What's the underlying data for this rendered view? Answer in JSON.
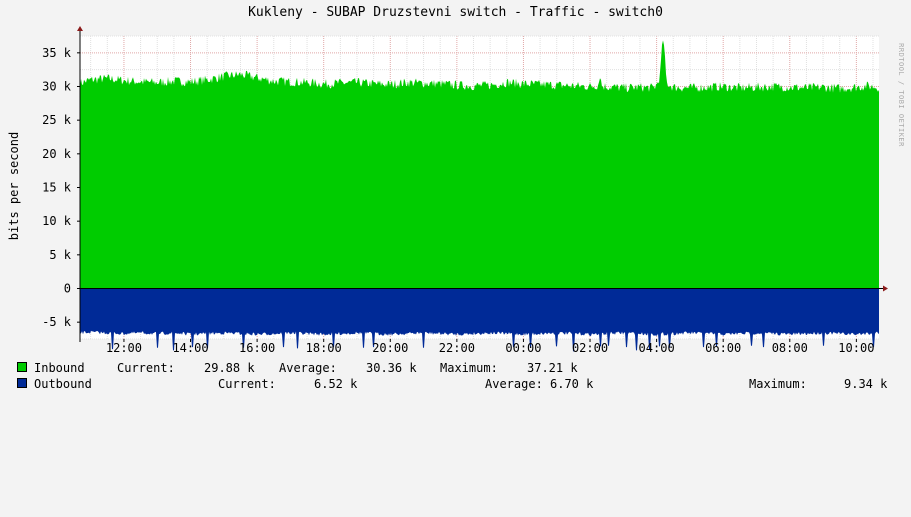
{
  "title": "Kukleny - SUBAP Druzstevni switch - Traffic - switch0",
  "watermark": "RRDTOOL / TOBI OETIKER",
  "colors": {
    "inbound": "#00cc00",
    "outbound": "#002a97",
    "plot_bg": "#ffffff",
    "grid_minor": "#e0e0e0",
    "grid_major": "#e0a8a8",
    "axis": "#000000"
  },
  "chart_data": {
    "type": "area",
    "ylabel": "bits per second",
    "ylim": [
      -7500,
      37500
    ],
    "y_ticks": [
      {
        "value": 35000,
        "label": "35 k"
      },
      {
        "value": 30000,
        "label": "30 k"
      },
      {
        "value": 25000,
        "label": "25 k"
      },
      {
        "value": 20000,
        "label": "20 k"
      },
      {
        "value": 15000,
        "label": "15 k"
      },
      {
        "value": 10000,
        "label": "10 k"
      },
      {
        "value": 5000,
        "label": "5 k"
      },
      {
        "value": 0,
        "label": "0"
      },
      {
        "value": -5000,
        "label": "-5 k"
      }
    ],
    "x_hours_range": [
      10.68,
      34.68
    ],
    "x_ticks": [
      {
        "value": 12,
        "label": "12:00"
      },
      {
        "value": 14,
        "label": "14:00"
      },
      {
        "value": 16,
        "label": "16:00"
      },
      {
        "value": 18,
        "label": "18:00"
      },
      {
        "value": 20,
        "label": "20:00"
      },
      {
        "value": 22,
        "label": "22:00"
      },
      {
        "value": 24,
        "label": "00:00"
      },
      {
        "value": 26,
        "label": "02:00"
      },
      {
        "value": 28,
        "label": "04:00"
      },
      {
        "value": 30,
        "label": "06:00"
      },
      {
        "value": 32,
        "label": "08:00"
      },
      {
        "value": 34,
        "label": "10:00"
      }
    ],
    "series": [
      {
        "name": "Inbound",
        "sign": 1,
        "points": [
          [
            10.68,
            30500
          ],
          [
            11.0,
            31000
          ],
          [
            11.5,
            31200
          ],
          [
            12.0,
            30900
          ],
          [
            12.5,
            30700
          ],
          [
            13.0,
            30600
          ],
          [
            13.5,
            30800
          ],
          [
            14.0,
            30700
          ],
          [
            14.5,
            31000
          ],
          [
            15.0,
            31500
          ],
          [
            15.5,
            31800
          ],
          [
            16.0,
            31300
          ],
          [
            16.5,
            30800
          ],
          [
            17.0,
            30700
          ],
          [
            17.5,
            30600
          ],
          [
            18.0,
            30400
          ],
          [
            18.5,
            30500
          ],
          [
            19.0,
            30600
          ],
          [
            19.5,
            30400
          ],
          [
            20.0,
            30300
          ],
          [
            20.5,
            30600
          ],
          [
            21.0,
            30500
          ],
          [
            21.5,
            30400
          ],
          [
            22.0,
            30200
          ],
          [
            22.5,
            30100
          ],
          [
            23.0,
            30200
          ],
          [
            23.5,
            30600
          ],
          [
            24.0,
            30400
          ],
          [
            24.5,
            30300
          ],
          [
            25.0,
            30200
          ],
          [
            25.5,
            30100
          ],
          [
            26.0,
            30000
          ],
          [
            26.25,
            30200
          ],
          [
            26.3,
            31800
          ],
          [
            26.35,
            30100
          ],
          [
            26.5,
            30000
          ],
          [
            27.0,
            29800
          ],
          [
            27.5,
            29900
          ],
          [
            27.9,
            29800
          ],
          [
            28.0,
            30200
          ],
          [
            28.1,
            31500
          ],
          [
            28.15,
            35000
          ],
          [
            28.2,
            37210
          ],
          [
            28.25,
            34000
          ],
          [
            28.3,
            30500
          ],
          [
            28.5,
            29900
          ],
          [
            29.0,
            29800
          ],
          [
            29.5,
            29900
          ],
          [
            30.0,
            30000
          ],
          [
            30.5,
            29800
          ],
          [
            31.0,
            29900
          ],
          [
            31.5,
            30000
          ],
          [
            32.0,
            29900
          ],
          [
            32.5,
            29800
          ],
          [
            33.0,
            29900
          ],
          [
            33.5,
            29700
          ],
          [
            34.0,
            29900
          ],
          [
            34.3,
            30100
          ],
          [
            34.68,
            29880
          ]
        ]
      },
      {
        "name": "Outbound",
        "sign": -1,
        "points": [
          [
            10.68,
            6600
          ],
          [
            11.0,
            6500
          ],
          [
            11.5,
            6600
          ],
          [
            12.0,
            6700
          ],
          [
            12.5,
            6600
          ],
          [
            13.0,
            6700
          ],
          [
            13.5,
            6600
          ],
          [
            14.0,
            6800
          ],
          [
            14.5,
            6700
          ],
          [
            15.0,
            6600
          ],
          [
            15.5,
            6700
          ],
          [
            16.0,
            6800
          ],
          [
            16.5,
            6700
          ],
          [
            17.0,
            6600
          ],
          [
            17.5,
            6700
          ],
          [
            18.0,
            6800
          ],
          [
            18.5,
            6700
          ],
          [
            19.0,
            6600
          ],
          [
            19.5,
            6700
          ],
          [
            20.0,
            6800
          ],
          [
            20.5,
            6700
          ],
          [
            21.0,
            6600
          ],
          [
            21.5,
            6700
          ],
          [
            22.0,
            6800
          ],
          [
            22.5,
            6700
          ],
          [
            23.0,
            6600
          ],
          [
            23.5,
            6700
          ],
          [
            24.0,
            6800
          ],
          [
            24.5,
            6700
          ],
          [
            25.0,
            6600
          ],
          [
            25.5,
            6700
          ],
          [
            26.0,
            6800
          ],
          [
            26.5,
            6700
          ],
          [
            27.0,
            6600
          ],
          [
            27.5,
            6700
          ],
          [
            28.0,
            6800
          ],
          [
            28.5,
            6700
          ],
          [
            29.0,
            6600
          ],
          [
            29.5,
            6700
          ],
          [
            30.0,
            6800
          ],
          [
            30.5,
            6700
          ],
          [
            31.0,
            6600
          ],
          [
            31.5,
            6700
          ],
          [
            32.0,
            6800
          ],
          [
            32.5,
            6700
          ],
          [
            33.0,
            6600
          ],
          [
            33.5,
            6700
          ],
          [
            34.0,
            6800
          ],
          [
            34.68,
            6520
          ]
        ],
        "spikes": [
          [
            11.65,
            9000
          ],
          [
            13.0,
            8800
          ],
          [
            13.5,
            9200
          ],
          [
            14.05,
            8700
          ],
          [
            14.5,
            8900
          ],
          [
            15.6,
            8800
          ],
          [
            16.8,
            8700
          ],
          [
            17.2,
            8900
          ],
          [
            18.3,
            8700
          ],
          [
            19.2,
            8800
          ],
          [
            19.5,
            8700
          ],
          [
            21.0,
            8800
          ],
          [
            23.7,
            8700
          ],
          [
            24.2,
            8800
          ],
          [
            25.0,
            8600
          ],
          [
            25.5,
            9340
          ],
          [
            26.3,
            8600
          ],
          [
            26.55,
            8500
          ],
          [
            27.1,
            8700
          ],
          [
            27.4,
            9200
          ],
          [
            27.8,
            9000
          ],
          [
            28.1,
            8600
          ],
          [
            28.4,
            8800
          ],
          [
            29.4,
            8700
          ],
          [
            29.8,
            8600
          ],
          [
            30.85,
            8500
          ],
          [
            31.2,
            8700
          ],
          [
            33.0,
            8500
          ],
          [
            34.5,
            8700
          ]
        ]
      }
    ]
  },
  "legend": {
    "inbound": {
      "label": "Inbound",
      "current_label": "Current:",
      "current": "29.88 k",
      "average_label": "Average:",
      "average": "30.36 k",
      "maximum_label": "Maximum:",
      "maximum": "37.21 k"
    },
    "outbound": {
      "label": "Outbound",
      "current_label": "Current:",
      "current": "6.52 k",
      "average_label": "Average:",
      "average": "6.70 k",
      "maximum_label": "Maximum:",
      "maximum": "9.34 k"
    }
  }
}
